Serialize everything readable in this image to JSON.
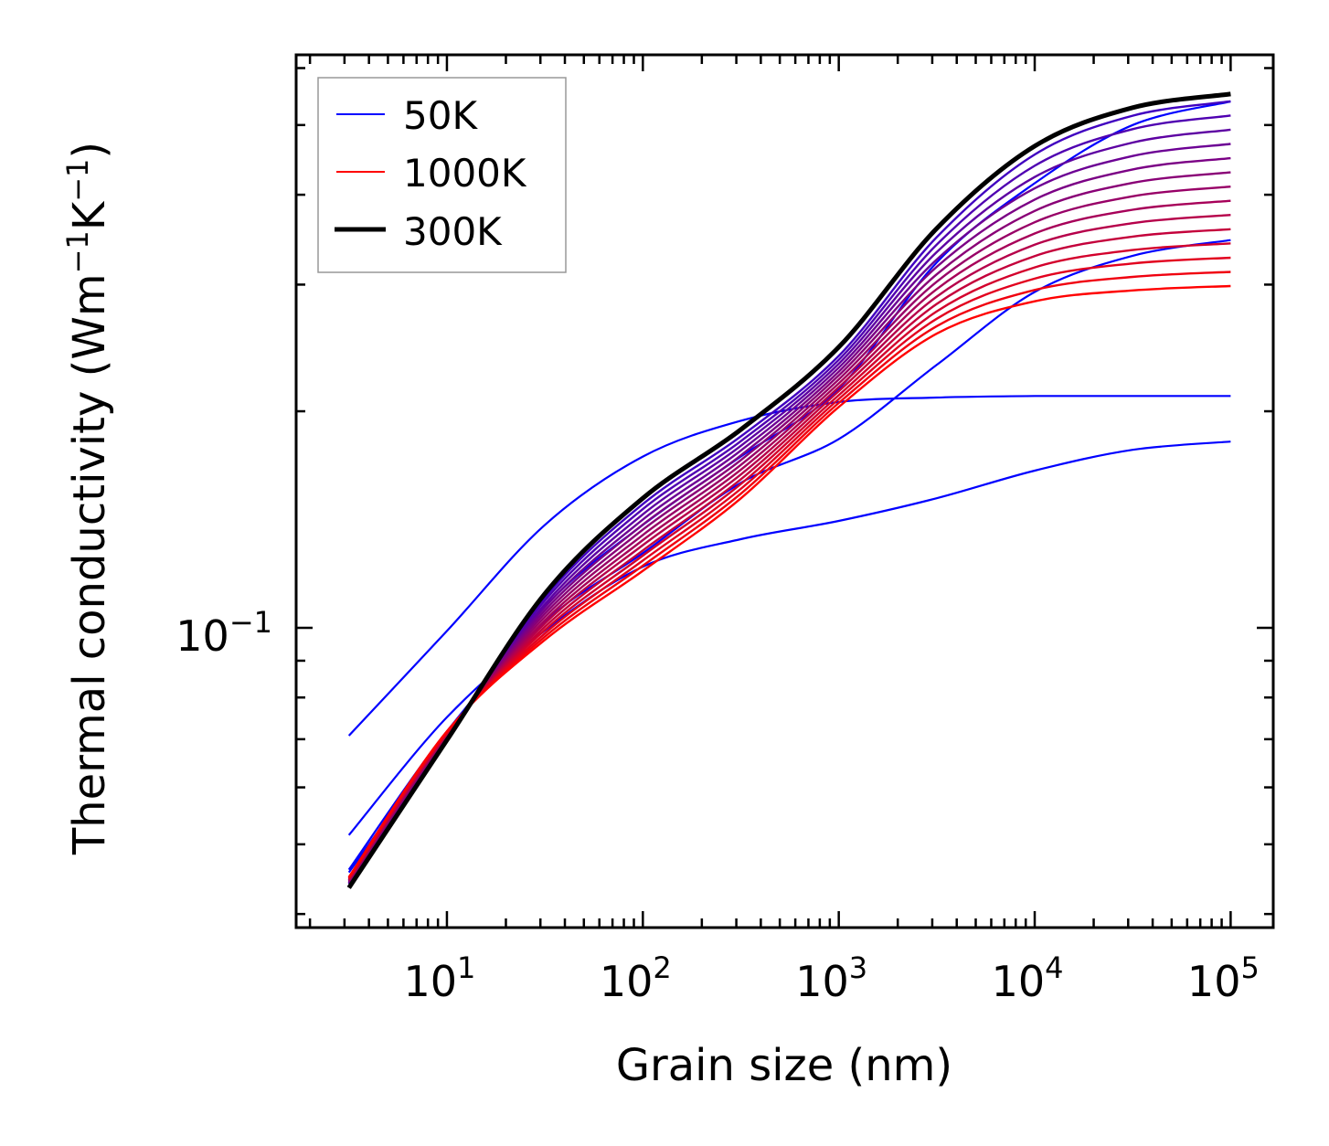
{
  "chart_data": {
    "type": "line",
    "title": "",
    "xlabel": "Grain size (nm)",
    "ylabel": "Thermal conductivity (Wm$^{-1}$K$^{-1}$)",
    "ylabel_parts": {
      "base": "Thermal conductivity (Wm",
      "sup1": "−1",
      "mid": "K",
      "sup2": "−1",
      "end": ")"
    },
    "xscale": "log",
    "yscale": "log",
    "xlim": [
      1.7,
      165000
    ],
    "ylim": [
      0.0383,
      0.626
    ],
    "grid": false,
    "legend_position": "top-left",
    "x_ticks": [
      {
        "value": 10,
        "base": "10",
        "exp": "1"
      },
      {
        "value": 100,
        "base": "10",
        "exp": "2"
      },
      {
        "value": 1000,
        "base": "10",
        "exp": "3"
      },
      {
        "value": 10000,
        "base": "10",
        "exp": "4"
      },
      {
        "value": 100000,
        "base": "10",
        "exp": "5"
      }
    ],
    "y_ticks": [
      {
        "value": 0.1,
        "base": "10",
        "exp": "−1"
      }
    ],
    "legend": [
      {
        "label": "50K",
        "color": "#0000ff",
        "style": "thin"
      },
      {
        "label": "1000K",
        "color": "#ff0000",
        "style": "thin"
      },
      {
        "label": "300K",
        "color": "#000000",
        "style": "thick"
      }
    ],
    "x": [
      3.16,
      10,
      31.6,
      100,
      316,
      1000,
      3162,
      10000,
      31623,
      100000
    ],
    "black_series": {
      "name": "300K",
      "color": "#000000",
      "values": [
        0.0435,
        0.0698,
        0.1115,
        0.1514,
        0.1886,
        0.2456,
        0.3591,
        0.4674,
        0.5286,
        0.5521
      ]
    },
    "gradient_series": {
      "color_start": "#4000c0",
      "color_end": "#ff0000",
      "series": [
        {
          "values": [
            0.044,
            0.0703,
            0.1102,
            0.1486,
            0.1845,
            0.2388,
            0.3491,
            0.455,
            0.5152,
            0.5395
          ]
        },
        {
          "values": [
            0.0441,
            0.0704,
            0.1091,
            0.1462,
            0.1817,
            0.2358,
            0.3409,
            0.4389,
            0.4935,
            0.5155
          ]
        },
        {
          "values": [
            0.0442,
            0.0705,
            0.1079,
            0.1438,
            0.179,
            0.2329,
            0.3329,
            0.4233,
            0.4727,
            0.4926
          ]
        },
        {
          "values": [
            0.0442,
            0.0706,
            0.1068,
            0.1414,
            0.1763,
            0.23,
            0.3251,
            0.4083,
            0.4528,
            0.4707
          ]
        },
        {
          "values": [
            0.0443,
            0.0708,
            0.1057,
            0.1391,
            0.1736,
            0.2271,
            0.3175,
            0.3938,
            0.4338,
            0.4497
          ]
        },
        {
          "values": [
            0.0444,
            0.0709,
            0.1046,
            0.1369,
            0.171,
            0.2243,
            0.31,
            0.3798,
            0.4155,
            0.4297
          ]
        },
        {
          "values": [
            0.0445,
            0.071,
            0.1035,
            0.1346,
            0.1684,
            0.2215,
            0.3028,
            0.3663,
            0.398,
            0.4106
          ]
        },
        {
          "values": [
            0.0446,
            0.0711,
            0.1024,
            0.1324,
            0.1658,
            0.2187,
            0.2957,
            0.3533,
            0.3813,
            0.3923
          ]
        },
        {
          "values": [
            0.0446,
            0.0712,
            0.1014,
            0.1303,
            0.1633,
            0.216,
            0.2887,
            0.3408,
            0.3652,
            0.3749
          ]
        },
        {
          "values": [
            0.0447,
            0.0713,
            0.1003,
            0.1281,
            0.1608,
            0.2133,
            0.282,
            0.3287,
            0.3498,
            0.3582
          ]
        },
        {
          "values": [
            0.0448,
            0.0714,
            0.0993,
            0.126,
            0.1584,
            0.2106,
            0.2753,
            0.317,
            0.3351,
            0.3423
          ]
        },
        {
          "values": [
            0.0449,
            0.0716,
            0.0982,
            0.124,
            0.156,
            0.208,
            0.2689,
            0.3058,
            0.321,
            0.327
          ]
        },
        {
          "values": [
            0.045,
            0.0717,
            0.0972,
            0.122,
            0.1536,
            0.2054,
            0.2626,
            0.2949,
            0.3075,
            0.3125
          ]
        },
        {
          "values": [
            0.045,
            0.0718,
            0.0962,
            0.12,
            0.1513,
            0.2028,
            0.2564,
            0.2844,
            0.2945,
            0.2986
          ]
        }
      ]
    },
    "blue_series": {
      "color": "#0000ff",
      "series": [
        {
          "values": [
            0.0708,
            0.099,
            0.139,
            0.173,
            0.194,
            0.206,
            0.209,
            0.21,
            0.21,
            0.21
          ]
        },
        {
          "values": [
            0.0515,
            0.0751,
            0.0991,
            0.1216,
            0.1328,
            0.1408,
            0.1514,
            0.1654,
            0.1768,
            0.1815
          ]
        },
        {
          "values": [
            0.0461,
            0.0718,
            0.102,
            0.127,
            0.159,
            0.183,
            0.232,
            0.293,
            0.329,
            0.346
          ]
        },
        {
          "values": [
            0.0457,
            0.0708,
            0.107,
            0.139,
            0.173,
            0.215,
            0.322,
            0.415,
            0.5,
            0.539
          ]
        }
      ]
    }
  }
}
